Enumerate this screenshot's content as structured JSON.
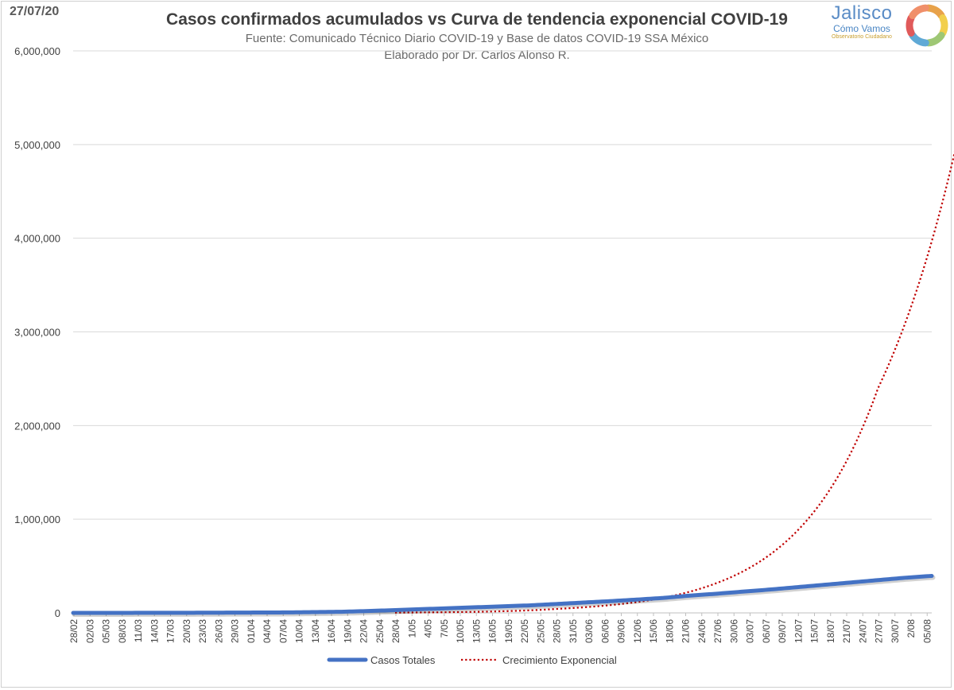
{
  "date_stamp": "27/07/20",
  "logo": {
    "name": "Jalisco",
    "line2": "Cómo Vamos",
    "line3": "Observatorio Ciudadano",
    "ring_colors": [
      "#e8a24a",
      "#f2cf4c",
      "#9ec774",
      "#5fa9d6",
      "#e05a5a",
      "#f08f6a"
    ]
  },
  "header": {
    "title": "Casos confirmados acumulados vs Curva de tendencia exponencial COVID-19",
    "subtitle1": "Fuente: Comunicado Técnico Diario COVID-19 y Base de datos COVID-19 SSA México",
    "subtitle2": "Elaborado por Dr. Carlos Alonso R."
  },
  "chart_data": {
    "type": "line",
    "x_labels": [
      "28/02",
      "02/03",
      "05/03",
      "08/03",
      "11/03",
      "14/03",
      "17/03",
      "20/03",
      "23/03",
      "26/03",
      "29/03",
      "01/04",
      "04/04",
      "07/04",
      "10/04",
      "13/04",
      "16/04",
      "19/04",
      "22/04",
      "25/04",
      "28/04",
      "1/05",
      "4/05",
      "7/05",
      "10/05",
      "13/05",
      "16/05",
      "19/05",
      "22/05",
      "25/05",
      "28/05",
      "31/05",
      "03/06",
      "06/06",
      "09/06",
      "12/06",
      "15/06",
      "18/06",
      "21/06",
      "24/06",
      "27/06",
      "30/06",
      "03/07",
      "06/07",
      "09/07",
      "12/07",
      "15/07",
      "18/07",
      "21/07",
      "24/07",
      "27/07",
      "30/07",
      "2/08",
      "05/08"
    ],
    "x_label_step_days": 3,
    "n_days": 160,
    "ylim": [
      0,
      6000000
    ],
    "yticks": [
      0,
      1000000,
      2000000,
      3000000,
      4000000,
      5000000,
      6000000
    ],
    "ytick_labels": [
      "0",
      "1,000,000",
      "2,000,000",
      "3,000,000",
      "4,000,000",
      "5,000,000",
      "6,000,000"
    ],
    "grid": true,
    "legend_position": "bottom",
    "series": [
      {
        "name": "Casos Totales",
        "color": "#4472c4",
        "style": "solid",
        "points": [
          [
            0,
            1
          ],
          [
            20,
            1000
          ],
          [
            40,
            5000
          ],
          [
            50,
            12000
          ],
          [
            55,
            20000
          ],
          [
            60,
            30000
          ],
          [
            65,
            40000
          ],
          [
            70,
            50000
          ],
          [
            75,
            60000
          ],
          [
            80,
            70000
          ],
          [
            85,
            80000
          ],
          [
            90,
            95000
          ],
          [
            95,
            110000
          ],
          [
            100,
            125000
          ],
          [
            105,
            142000
          ],
          [
            110,
            160000
          ],
          [
            115,
            185000
          ],
          [
            120,
            205000
          ],
          [
            125,
            228000
          ],
          [
            130,
            250000
          ],
          [
            135,
            275000
          ],
          [
            140,
            300000
          ],
          [
            145,
            325000
          ],
          [
            150,
            350000
          ],
          [
            155,
            375000
          ],
          [
            160,
            395000
          ]
        ]
      },
      {
        "name": "Crecimiento Exponencial",
        "color": "#c00000",
        "style": "dotted",
        "fit": "exponential",
        "points": [
          [
            60,
            3000
          ],
          [
            90,
            42000
          ],
          [
            105,
            115000
          ],
          [
            120,
            320000
          ],
          [
            135,
            880000
          ],
          [
            150,
            2400000
          ],
          [
            165,
            5100000
          ]
        ]
      }
    ]
  }
}
